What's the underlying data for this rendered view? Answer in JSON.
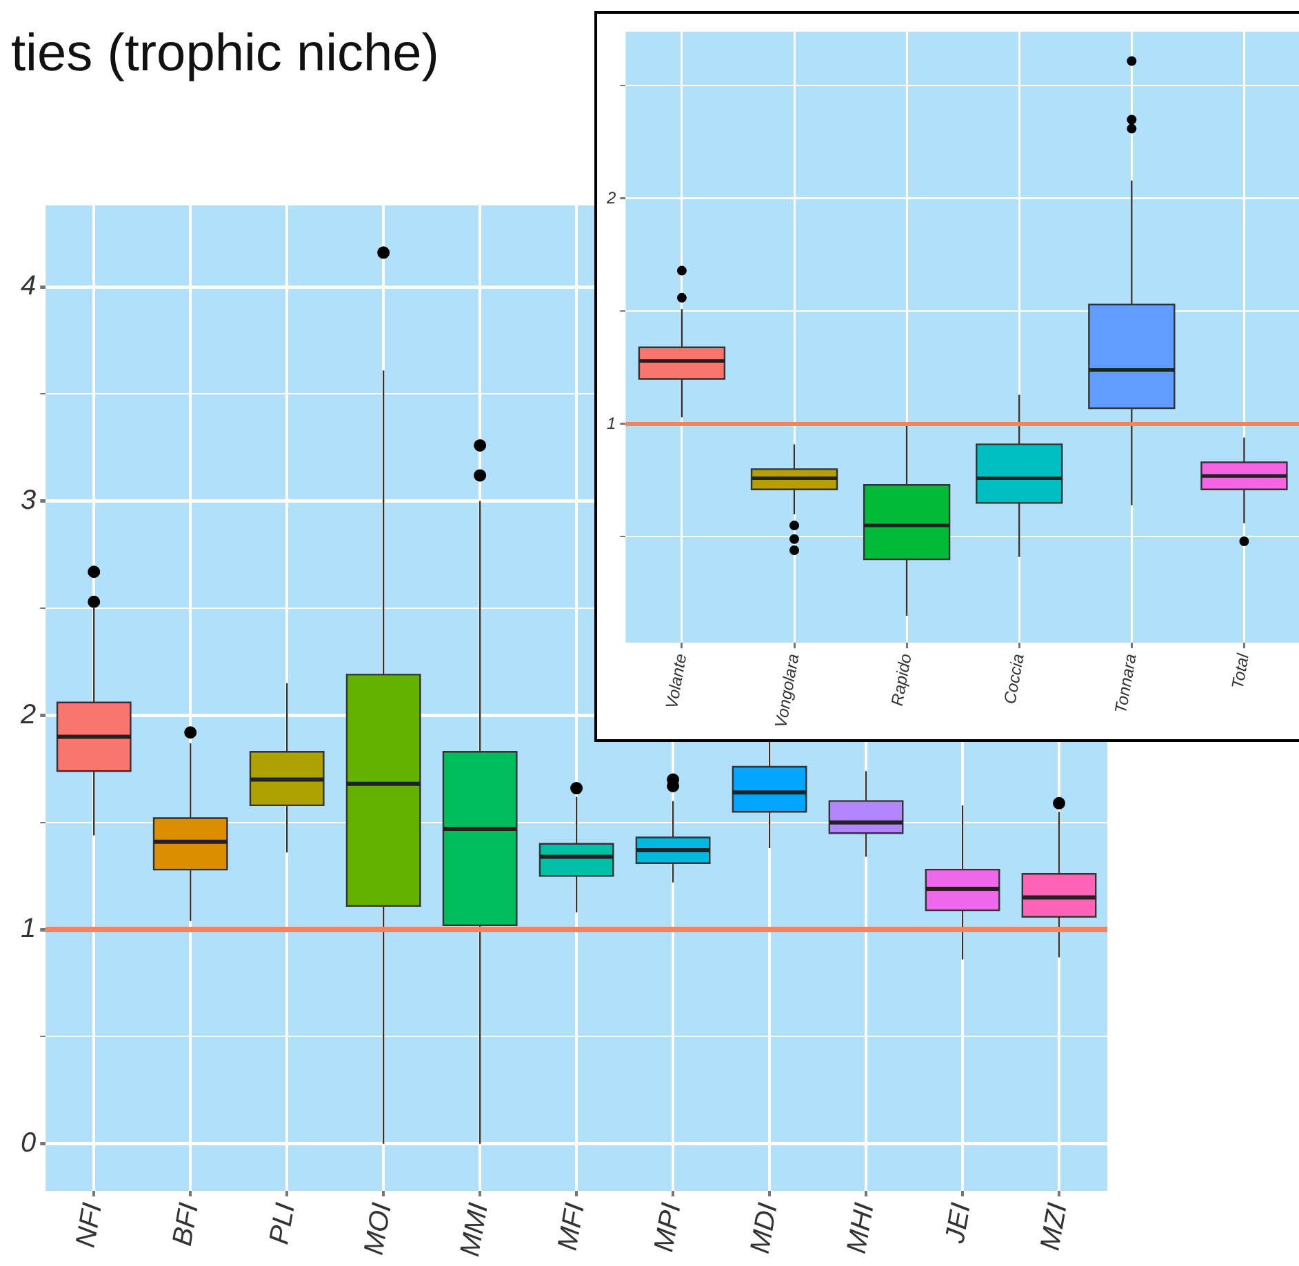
{
  "chart_data": [
    {
      "type": "box",
      "title": "ties (trophic niche)",
      "categories": [
        "NFI",
        "BFI",
        "PLI",
        "MOI",
        "MMI",
        "MFI",
        "MPI",
        "MDI",
        "MHI",
        "JEI",
        "MZI"
      ],
      "colors": [
        "#f8766d",
        "#db8e00",
        "#aea200",
        "#64b200",
        "#00bd5c",
        "#00c1a7",
        "#00bade",
        "#00a6ff",
        "#b385ff",
        "#ef67eb",
        "#ff63b6"
      ],
      "boxes": [
        {
          "low": 1.44,
          "q1": 1.74,
          "median": 1.9,
          "q3": 2.06,
          "high": 2.5,
          "outliers": [
            2.53,
            2.67
          ]
        },
        {
          "low": 1.04,
          "q1": 1.28,
          "median": 1.41,
          "q3": 1.52,
          "high": 1.87,
          "outliers": [
            1.92
          ]
        },
        {
          "low": 1.36,
          "q1": 1.58,
          "median": 1.7,
          "q3": 1.83,
          "high": 2.15
        },
        {
          "low": 0,
          "q1": 1.11,
          "median": 1.68,
          "q3": 2.19,
          "high": 3.61,
          "outliers": [
            4.16
          ]
        },
        {
          "low": 0,
          "q1": 1.02,
          "median": 1.47,
          "q3": 1.83,
          "high": 3.0,
          "outliers": [
            3.12,
            3.26
          ]
        },
        {
          "low": 1.08,
          "q1": 1.25,
          "median": 1.34,
          "q3": 1.4,
          "high": 1.62,
          "outliers": [
            1.66
          ]
        },
        {
          "low": 1.22,
          "q1": 1.31,
          "median": 1.37,
          "q3": 1.43,
          "high": 1.6,
          "outliers": [
            1.67,
            1.7
          ]
        },
        {
          "low": 1.38,
          "q1": 1.55,
          "median": 1.64,
          "q3": 1.76,
          "high": 1.95
        },
        {
          "low": 1.34,
          "q1": 1.45,
          "median": 1.5,
          "q3": 1.6,
          "high": 1.74
        },
        {
          "low": 0.86,
          "q1": 1.09,
          "median": 1.19,
          "q3": 1.28,
          "high": 1.58
        },
        {
          "low": 0.87,
          "q1": 1.06,
          "median": 1.15,
          "q3": 1.26,
          "high": 1.55,
          "outliers": [
            1.59
          ]
        }
      ],
      "ylim": [
        -0.22,
        4.38
      ],
      "yticks": [
        0,
        {
          "value": 0.5,
          "label": null
        },
        1,
        {
          "value": 1.5,
          "label": null
        },
        2,
        {
          "value": 2.5,
          "label": null
        },
        3,
        {
          "value": 3.5,
          "label": null
        },
        4
      ],
      "grid": true,
      "ref_lines": [
        {
          "axis": "y",
          "value": 1,
          "color": "#f4845f"
        }
      ]
    },
    {
      "type": "box",
      "categories": [
        "Volante",
        "Vongolara",
        "Rapido",
        "Coccia",
        "Tonnara",
        "Total"
      ],
      "colors": [
        "#f8766d",
        "#b79f00",
        "#00ba38",
        "#00bfc4",
        "#619cff",
        "#f564e3"
      ],
      "boxes": [
        {
          "low": 1.03,
          "q1": 1.2,
          "median": 1.28,
          "q3": 1.34,
          "high": 1.51,
          "outliers": [
            1.56,
            1.68
          ]
        },
        {
          "low": 0.6,
          "q1": 0.71,
          "median": 0.76,
          "q3": 0.8,
          "high": 0.91,
          "outliers": [
            0.55,
            0.49,
            0.44
          ]
        },
        {
          "low": 0.15,
          "q1": 0.4,
          "median": 0.55,
          "q3": 0.73,
          "high": 1.0
        },
        {
          "low": 0.41,
          "q1": 0.65,
          "median": 0.76,
          "q3": 0.91,
          "high": 1.13
        },
        {
          "low": 0.64,
          "q1": 1.07,
          "median": 1.24,
          "q3": 1.53,
          "high": 2.08,
          "outliers": [
            2.31,
            2.35,
            2.61
          ]
        },
        {
          "low": 0.56,
          "q1": 0.71,
          "median": 0.77,
          "q3": 0.83,
          "high": 0.94,
          "outliers": [
            0.48
          ]
        }
      ],
      "ylim": [
        0.03,
        2.74
      ],
      "yticks": [
        {
          "value": 0.5,
          "label": null
        },
        1,
        {
          "value": 1.5,
          "label": null
        },
        2,
        {
          "value": 2.5,
          "label": null
        }
      ],
      "grid": true,
      "ref_lines": [
        {
          "axis": "y",
          "value": 1,
          "color": "#f4845f"
        }
      ]
    }
  ]
}
